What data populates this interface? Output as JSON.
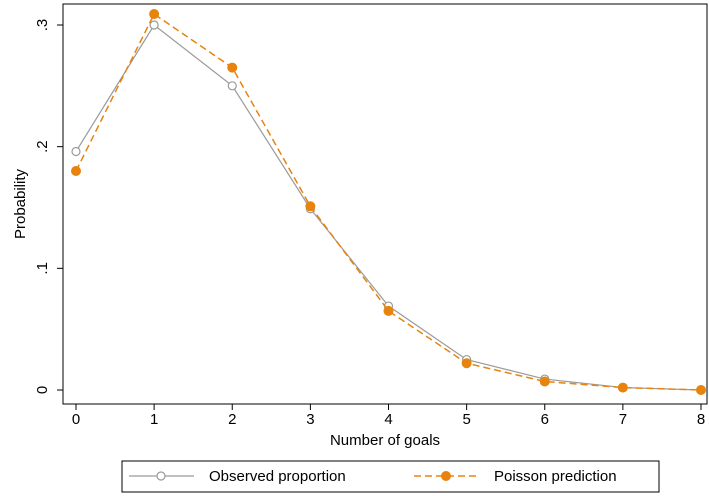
{
  "chart_data": {
    "type": "line",
    "title": "",
    "xlabel": "Number of goals",
    "ylabel": "Probability",
    "x": [
      0,
      1,
      2,
      3,
      4,
      5,
      6,
      7,
      8
    ],
    "xlim": [
      0,
      8
    ],
    "ylim": [
      0,
      0.3
    ],
    "xticks": [
      "0",
      "1",
      "2",
      "3",
      "4",
      "5",
      "6",
      "7",
      "8"
    ],
    "yticks": [
      {
        "value": 0,
        "label": "0"
      },
      {
        "value": 0.1,
        "label": ".1"
      },
      {
        "value": 0.2,
        "label": ".2"
      },
      {
        "value": 0.3,
        "label": ".3"
      }
    ],
    "grid": false,
    "legend_position": "bottom",
    "series": [
      {
        "name": "Observed proportion",
        "color": "#9a9a9a",
        "style": "solid",
        "marker": "hollow-circle",
        "values": [
          0.196,
          0.3,
          0.25,
          0.149,
          0.069,
          0.025,
          0.009,
          0.002,
          0.0
        ]
      },
      {
        "name": "Poisson prediction",
        "color": "#e8830e",
        "style": "dashed",
        "marker": "filled-circle",
        "values": [
          0.18,
          0.309,
          0.265,
          0.151,
          0.065,
          0.022,
          0.007,
          0.002,
          0.0
        ]
      }
    ]
  }
}
